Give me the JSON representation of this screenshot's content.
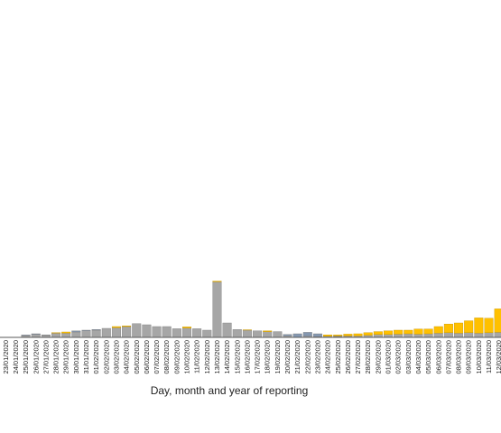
{
  "chart_data": {
    "type": "bar",
    "stacked": true,
    "title": "",
    "xlabel": "Day, month and year of reporting",
    "ylabel": "",
    "ylim": [
      0,
      100
    ],
    "grid": false,
    "legend": "none",
    "colors": {
      "bar_grey": "#a6a6a6",
      "bar_blue": "#8497b0",
      "bar_yellow": "#ffc000",
      "bar_outline": "#7f7f7f",
      "axis": "#595959"
    },
    "categories": [
      "23/01/2020",
      "24/01/2020",
      "25/01/2020",
      "26/01/2020",
      "27/01/2020",
      "28/01/2020",
      "29/01/2020",
      "30/01/2020",
      "31/01/2020",
      "01/02/2020",
      "02/02/2020",
      "03/02/2020",
      "04/02/2020",
      "05/02/2020",
      "06/02/2020",
      "07/02/2020",
      "08/02/2020",
      "09/02/2020",
      "10/02/2020",
      "11/02/2020",
      "12/02/2020",
      "13/02/2020",
      "14/02/2020",
      "15/02/2020",
      "16/02/2020",
      "17/02/2020",
      "18/02/2020",
      "19/02/2020",
      "20/02/2020",
      "21/02/2020",
      "22/02/2020",
      "23/02/2020",
      "24/02/2020",
      "25/02/2020",
      "26/02/2020",
      "27/02/2020",
      "28/02/2020",
      "29/02/2020",
      "01/03/2020",
      "02/03/2020",
      "03/03/2020",
      "04/03/2020",
      "05/03/2020",
      "06/03/2020",
      "07/03/2020",
      "08/03/2020",
      "09/03/2020",
      "10/03/2020",
      "11/03/2020",
      "12/03/2020"
    ],
    "series": [
      {
        "color": "#a6a6a6",
        "values": [
          0,
          0,
          0.5,
          0.8,
          0.6,
          1.2,
          1.2,
          1.5,
          1.8,
          2.0,
          2.5,
          2.7,
          3.0,
          3.8,
          3.5,
          3.0,
          3.0,
          2.4,
          2.6,
          2.4,
          2.0,
          15.4,
          4.0,
          2.2,
          2.0,
          1.8,
          1.6,
          1.6,
          0.4,
          0,
          0.3,
          0.2,
          0,
          0.2,
          0.3,
          0.4,
          0.6,
          0.8,
          0.8,
          0.9,
          1.0,
          0.9,
          1.0,
          1.2,
          1.3,
          1.2,
          1.3,
          1.2,
          1.3,
          1.4
        ]
      },
      {
        "color": "#8497b0",
        "values": [
          0,
          0,
          0.2,
          0.2,
          0.1,
          0,
          0,
          0.3,
          0.2,
          0.2,
          0,
          0,
          0,
          0,
          0,
          0,
          0,
          0,
          0,
          0,
          0,
          0,
          0,
          0,
          0,
          0,
          0,
          0,
          0.4,
          1.0,
          1.1,
          0.8,
          0.3,
          0.2,
          0.1,
          0,
          0,
          0,
          0,
          0,
          0,
          0,
          0,
          0,
          0,
          0,
          0,
          0,
          0,
          0
        ]
      },
      {
        "color": "#ffc000",
        "values": [
          0,
          0,
          0,
          0,
          0,
          0.1,
          0.3,
          0,
          0,
          0,
          0,
          0.3,
          0.2,
          0,
          0,
          0,
          0,
          0,
          0.3,
          0,
          0,
          0.2,
          0,
          0,
          0.1,
          0,
          0.2,
          0,
          0,
          0,
          0,
          0,
          0.4,
          0.3,
          0.5,
          0.6,
          0.7,
          0.8,
          1.0,
          1.1,
          1.0,
          1.4,
          1.3,
          1.8,
          2.4,
          2.8,
          3.3,
          4.2,
          4.0,
          6.5
        ]
      }
    ]
  }
}
